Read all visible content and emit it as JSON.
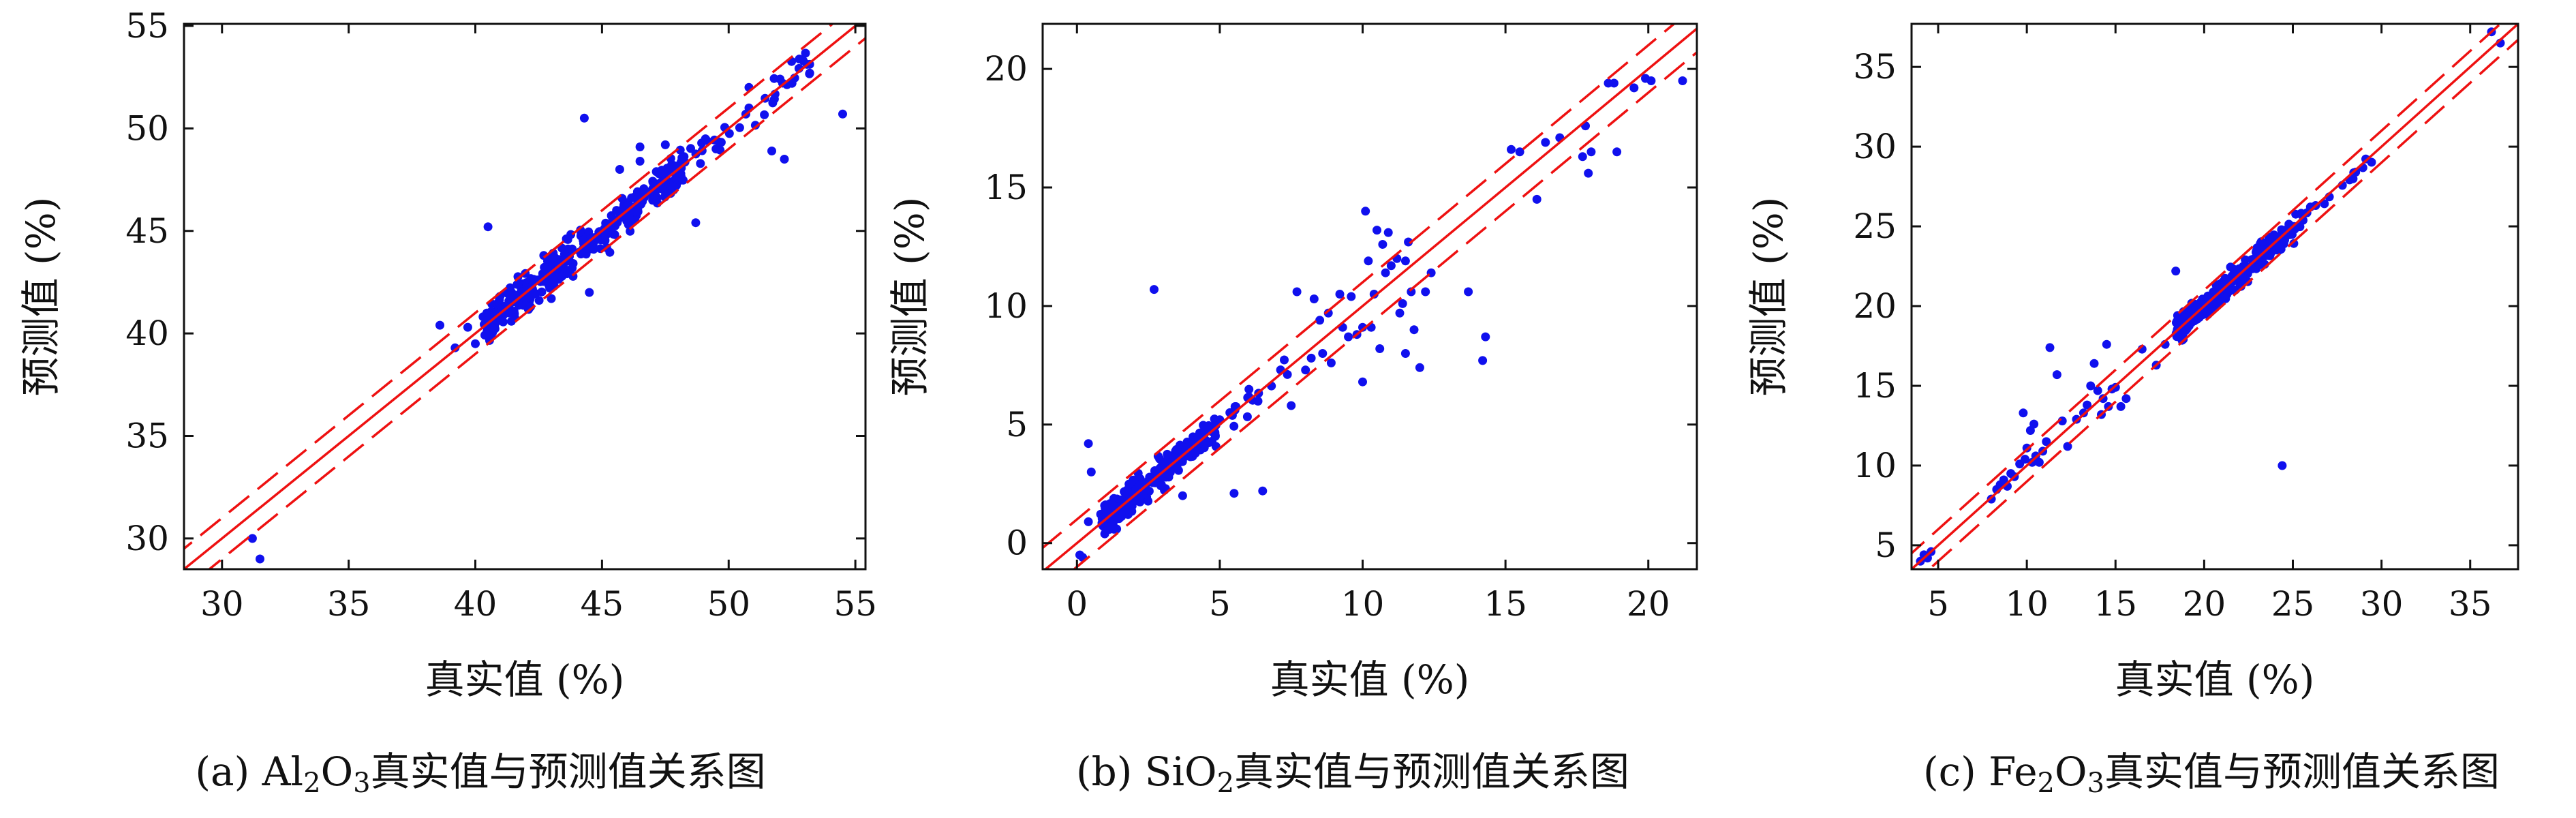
{
  "colors": {
    "point": "#1010ee",
    "line": "#ee1111",
    "axis": "#111111"
  },
  "chart_data": [
    {
      "type": "scatter",
      "caption": {
        "prefix": "(a) Al",
        "sub1": "2",
        "mid": "O",
        "sub2": "3",
        "suffix": "真实值与预测值关系图"
      },
      "xlabel": "真实值 (%)",
      "ylabel": "预测值 (%)",
      "xlim": [
        28.5,
        55.4
      ],
      "ylim": [
        28.5,
        55.1
      ],
      "xticks": [
        30,
        35,
        40,
        45,
        50,
        55
      ],
      "yticks": [
        30,
        35,
        40,
        45,
        50,
        55
      ],
      "lines": [
        {
          "name": "y = x",
          "offset": 0,
          "dash": false
        },
        {
          "name": "upper",
          "offset": 1.0,
          "dash": true
        },
        {
          "name": "lower",
          "offset": -1.0,
          "dash": true
        }
      ],
      "cluster": {
        "x_range": [
          40.5,
          53.3
        ],
        "spread": 0.45,
        "count": 420,
        "seed": 11
      },
      "points": [
        [
          31.2,
          30.0
        ],
        [
          31.5,
          29.0
        ],
        [
          38.6,
          40.4
        ],
        [
          39.2,
          39.3
        ],
        [
          39.7,
          40.3
        ],
        [
          40.0,
          39.5
        ],
        [
          40.5,
          45.2
        ],
        [
          44.3,
          50.5
        ],
        [
          46.5,
          49.1
        ],
        [
          46.5,
          48.4
        ],
        [
          47.5,
          49.2
        ],
        [
          48.7,
          45.4
        ],
        [
          49.5,
          49.0
        ],
        [
          51.7,
          48.9
        ],
        [
          52.2,
          48.5
        ],
        [
          52.5,
          52.2
        ],
        [
          53.2,
          52.7
        ],
        [
          54.5,
          50.7
        ],
        [
          43.0,
          41.7
        ],
        [
          44.5,
          42.0
        ],
        [
          42.7,
          43.8
        ],
        [
          45.7,
          48.0
        ],
        [
          47.3,
          47.8
        ],
        [
          50.8,
          52.0
        ]
      ]
    },
    {
      "type": "scatter",
      "caption": {
        "prefix": "(b) SiO",
        "sub1": "2",
        "mid": "",
        "sub2": "",
        "suffix": "真实值与预测值关系图"
      },
      "xlabel": "真实值 (%)",
      "ylabel": "预测值 (%)",
      "xlim": [
        -1.2,
        21.7
      ],
      "ylim": [
        -1.1,
        21.9
      ],
      "xticks": [
        0,
        5,
        10,
        15,
        20
      ],
      "yticks": [
        0,
        5,
        10,
        15,
        20
      ],
      "lines": [
        {
          "name": "y = x",
          "offset": 0,
          "dash": false
        },
        {
          "name": "upper",
          "offset": 1.0,
          "dash": true
        },
        {
          "name": "lower",
          "offset": -1.0,
          "dash": true
        }
      ],
      "cluster": {
        "x_range": [
          1.0,
          7.5
        ],
        "spread": 0.3,
        "count": 320,
        "seed": 23
      },
      "points": [
        [
          0.1,
          -0.5
        ],
        [
          0.2,
          -0.6
        ],
        [
          0.4,
          0.9
        ],
        [
          0.4,
          4.2
        ],
        [
          0.5,
          3.0
        ],
        [
          2.7,
          10.7
        ],
        [
          3.1,
          2.3
        ],
        [
          3.7,
          2.0
        ],
        [
          5.5,
          2.1
        ],
        [
          6.5,
          2.2
        ],
        [
          7.5,
          5.8
        ],
        [
          8.0,
          7.3
        ],
        [
          8.2,
          7.8
        ],
        [
          8.6,
          8.0
        ],
        [
          8.9,
          7.6
        ],
        [
          7.7,
          10.6
        ],
        [
          8.3,
          10.3
        ],
        [
          8.5,
          9.4
        ],
        [
          8.8,
          9.7
        ],
        [
          9.2,
          10.5
        ],
        [
          9.3,
          9.1
        ],
        [
          9.5,
          8.7
        ],
        [
          9.6,
          10.4
        ],
        [
          9.8,
          8.8
        ],
        [
          10.0,
          6.8
        ],
        [
          10.0,
          9.1
        ],
        [
          10.1,
          14.0
        ],
        [
          10.2,
          11.9
        ],
        [
          10.3,
          9.1
        ],
        [
          10.4,
          10.5
        ],
        [
          10.5,
          13.2
        ],
        [
          10.6,
          8.2
        ],
        [
          10.7,
          12.6
        ],
        [
          10.8,
          11.4
        ],
        [
          10.9,
          13.1
        ],
        [
          11.0,
          11.7
        ],
        [
          11.2,
          12.0
        ],
        [
          11.3,
          9.7
        ],
        [
          11.4,
          10.1
        ],
        [
          11.5,
          11.9
        ],
        [
          11.5,
          8.0
        ],
        [
          11.6,
          12.7
        ],
        [
          11.7,
          10.6
        ],
        [
          11.8,
          9.0
        ],
        [
          12.0,
          7.4
        ],
        [
          12.2,
          10.6
        ],
        [
          12.4,
          11.4
        ],
        [
          13.7,
          10.6
        ],
        [
          14.3,
          8.7
        ],
        [
          14.2,
          7.7
        ],
        [
          15.2,
          16.6
        ],
        [
          15.5,
          16.5
        ],
        [
          16.1,
          14.5
        ],
        [
          16.4,
          16.9
        ],
        [
          16.9,
          17.1
        ],
        [
          17.7,
          16.3
        ],
        [
          17.9,
          15.6
        ],
        [
          17.8,
          17.6
        ],
        [
          18.0,
          16.5
        ],
        [
          18.6,
          19.4
        ],
        [
          18.8,
          19.4
        ],
        [
          18.9,
          16.5
        ],
        [
          19.5,
          19.2
        ],
        [
          19.9,
          19.6
        ],
        [
          20.1,
          19.5
        ],
        [
          21.2,
          19.5
        ]
      ]
    },
    {
      "type": "scatter",
      "caption": {
        "prefix": "(c) Fe",
        "sub1": "2",
        "mid": "O",
        "sub2": "3",
        "suffix": "真实值与预测值关系图"
      },
      "xlabel": "真实值 (%)",
      "ylabel": "预测值 (%)",
      "xlim": [
        3.5,
        37.7
      ],
      "ylim": [
        3.5,
        37.7
      ],
      "xticks": [
        5,
        10,
        15,
        20,
        25,
        30,
        35
      ],
      "yticks": [
        5,
        10,
        15,
        20,
        25,
        30,
        35
      ],
      "lines": [
        {
          "name": "y = x",
          "offset": 0,
          "dash": false
        },
        {
          "name": "upper",
          "offset": 1.0,
          "dash": true
        },
        {
          "name": "lower",
          "offset": -1.0,
          "dash": true
        }
      ],
      "cluster": {
        "x_range": [
          18.5,
          29.5
        ],
        "spread": 0.35,
        "count": 300,
        "seed": 37
      },
      "points": [
        [
          4.0,
          4.0
        ],
        [
          4.2,
          4.4
        ],
        [
          4.4,
          4.2
        ],
        [
          4.6,
          4.6
        ],
        [
          8.0,
          7.9
        ],
        [
          8.3,
          8.5
        ],
        [
          8.5,
          8.8
        ],
        [
          8.7,
          9.1
        ],
        [
          8.9,
          8.7
        ],
        [
          9.1,
          9.5
        ],
        [
          9.3,
          9.3
        ],
        [
          9.6,
          10.1
        ],
        [
          9.8,
          13.3
        ],
        [
          9.9,
          10.4
        ],
        [
          10.0,
          11.1
        ],
        [
          10.2,
          12.2
        ],
        [
          10.3,
          10.2
        ],
        [
          10.4,
          12.6
        ],
        [
          10.5,
          10.6
        ],
        [
          10.7,
          10.2
        ],
        [
          10.9,
          10.9
        ],
        [
          11.1,
          11.5
        ],
        [
          11.3,
          17.4
        ],
        [
          11.7,
          15.7
        ],
        [
          12.0,
          12.8
        ],
        [
          12.3,
          11.2
        ],
        [
          12.8,
          12.9
        ],
        [
          13.2,
          13.3
        ],
        [
          13.4,
          13.8
        ],
        [
          13.6,
          15.0
        ],
        [
          13.8,
          16.4
        ],
        [
          14.0,
          14.7
        ],
        [
          14.2,
          13.2
        ],
        [
          14.3,
          14.2
        ],
        [
          14.5,
          17.6
        ],
        [
          14.6,
          13.7
        ],
        [
          14.8,
          14.8
        ],
        [
          15.0,
          14.9
        ],
        [
          15.3,
          13.7
        ],
        [
          15.6,
          14.2
        ],
        [
          16.5,
          17.3
        ],
        [
          17.3,
          16.3
        ],
        [
          17.8,
          17.6
        ],
        [
          18.4,
          22.2
        ],
        [
          24.4,
          10.0
        ],
        [
          36.2,
          37.2
        ],
        [
          36.7,
          36.5
        ]
      ]
    }
  ]
}
